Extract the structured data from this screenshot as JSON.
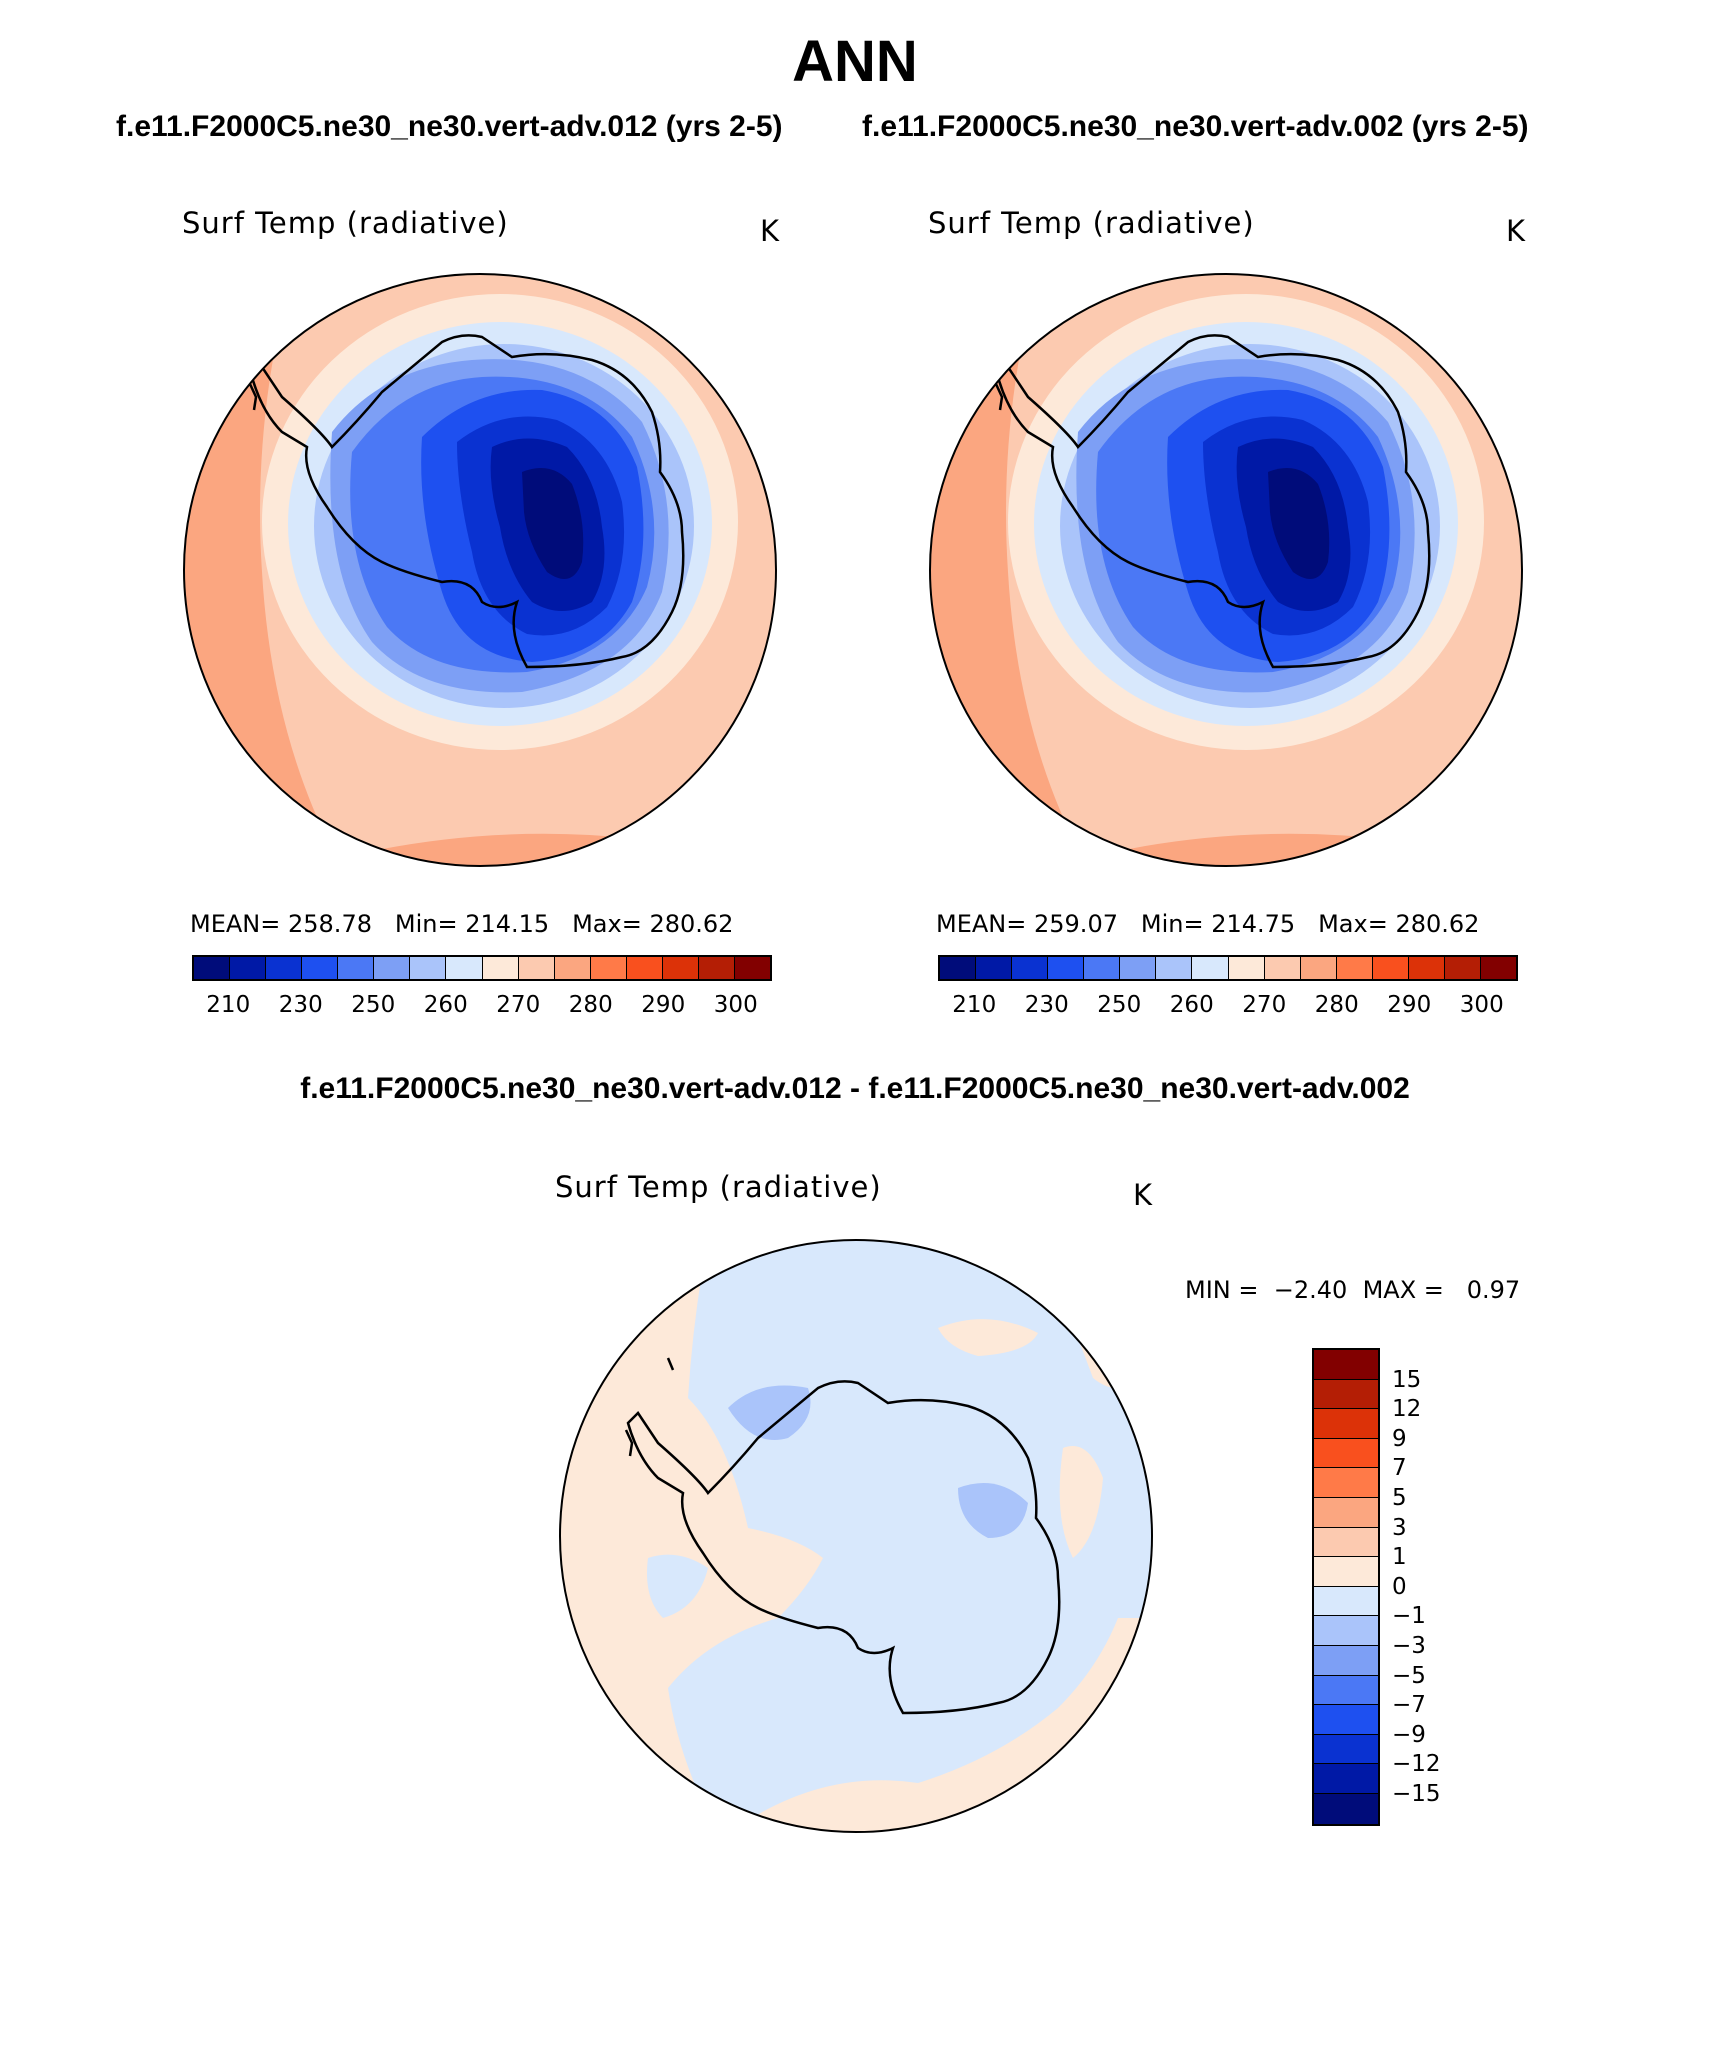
{
  "title": "ANN",
  "panels": [
    {
      "case_title": "f.e11.F2000C5.ne30_ne30.vert-adv.012 (yrs 2-5)",
      "plot_title": "Surf Temp (radiative)",
      "units": "K",
      "mean_label": "MEAN=",
      "mean_value": "258.78",
      "min_label": "Min=",
      "min_value": "214.15",
      "max_label": "Max=",
      "max_value": "280.62"
    },
    {
      "case_title": "f.e11.F2000C5.ne30_ne30.vert-adv.002 (yrs 2-5)",
      "plot_title": "Surf Temp (radiative)",
      "units": "K",
      "mean_label": "MEAN=",
      "mean_value": "259.07",
      "min_label": "Min=",
      "min_value": "214.75",
      "max_label": "Max=",
      "max_value": "280.62"
    }
  ],
  "abs_colorbar": {
    "colors": [
      "#000c7a",
      "#0019a6",
      "#0a32d1",
      "#1e50f0",
      "#4b78f5",
      "#7d9ff5",
      "#aac4fa",
      "#d8e8fc",
      "#fde9d9",
      "#fccab0",
      "#fba680",
      "#ff7a48",
      "#f9501e",
      "#dc3208",
      "#b41e05",
      "#820000"
    ],
    "labels": [
      "210",
      "230",
      "250",
      "260",
      "270",
      "280",
      "290",
      "300"
    ]
  },
  "diff_panel": {
    "title": "f.e11.F2000C5.ne30_ne30.vert-adv.012 - f.e11.F2000C5.ne30_ne30.vert-adv.002",
    "plot_title": "Surf Temp (radiative)",
    "units": "K",
    "min_label": "MIN =",
    "min_value": "−2.40",
    "max_label": "MAX =",
    "max_value": "0.97"
  },
  "diff_colorbar": {
    "colors": [
      "#820000",
      "#b41e05",
      "#dc3208",
      "#f9501e",
      "#ff7a48",
      "#fba680",
      "#fccab0",
      "#fde9d9",
      "#d8e8fc",
      "#aac4fa",
      "#7d9ff5",
      "#4b78f5",
      "#1e50f0",
      "#0a32d1",
      "#0019a6",
      "#000c7a"
    ],
    "labels": [
      "15",
      "12",
      "9",
      "7",
      "5",
      "3",
      "1",
      "0",
      "−1",
      "−3",
      "−5",
      "−7",
      "−9",
      "−12",
      "−15"
    ]
  },
  "colors": {
    "warm_deep": "#fba680",
    "warm_mid": "#fccab0",
    "warm_light": "#fde9d9",
    "cool_light": "#d8e8fc",
    "cool_mid": "#aac4fa",
    "coastline": "#000000"
  }
}
